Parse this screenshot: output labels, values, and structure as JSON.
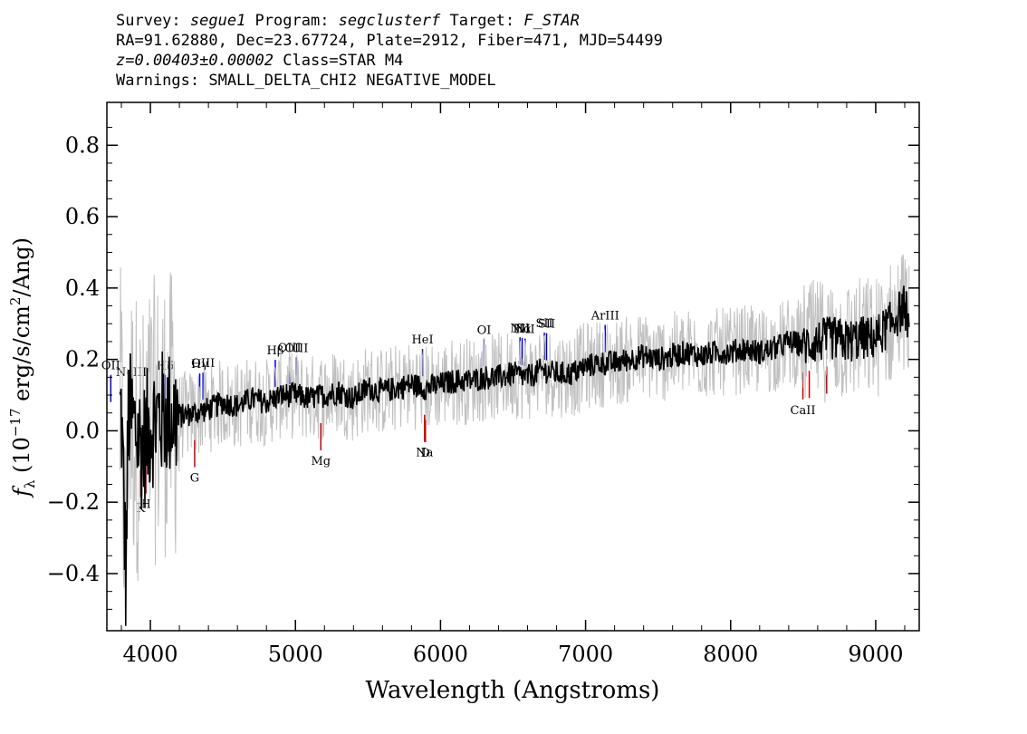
{
  "header": {
    "line1": {
      "survey_label": "Survey: ",
      "survey": "segue1",
      "program_label": " Program: ",
      "program": "segclusterf",
      "target_label": " Target: ",
      "target": "F_STAR"
    },
    "line2": "RA=91.62880, Dec=23.67724, Plate=2912, Fiber=471, MJD=54499",
    "line3": {
      "z": "z=0.00403±0.00002",
      "class": " Class=STAR M4"
    },
    "line4": "Warnings: SMALL_DELTA_CHI2 NEGATIVE_MODEL"
  },
  "chart_data": {
    "type": "line",
    "xlabel": "Wavelength (Angstroms)",
    "ylabel": "f_λ (10^-17 erg/s/cm²/Ang)",
    "xlim": [
      3700,
      9300
    ],
    "ylim": [
      -0.56,
      0.92
    ],
    "xticks": [
      4000,
      5000,
      6000,
      7000,
      8000,
      9000
    ],
    "yticks": [
      -0.4,
      -0.2,
      0.0,
      0.2,
      0.4,
      0.6,
      0.8
    ],
    "ytick_labels": [
      "−0.4",
      "−0.2",
      "0.0",
      "0.2",
      "0.4",
      "0.6",
      "0.8"
    ],
    "series": [
      {
        "role": "flux",
        "color": "#000000",
        "x": [
          3800,
          3830,
          3850,
          3900,
          3950,
          4000,
          4100,
          4200,
          4300,
          4400,
          4500,
          4600,
          4700,
          4800,
          4900,
          5000,
          5100,
          5200,
          5300,
          5400,
          5500,
          5600,
          5700,
          5800,
          5900,
          6000,
          6100,
          6200,
          6300,
          6400,
          6500,
          6600,
          6700,
          6800,
          6900,
          7000,
          7100,
          7200,
          7300,
          7400,
          7500,
          7600,
          7700,
          7800,
          7900,
          8000,
          8100,
          8200,
          8300,
          8400,
          8500,
          8600,
          8700,
          8800,
          8900,
          9000,
          9100,
          9200,
          9230
        ],
        "y": [
          0.05,
          -0.4,
          0.05,
          0.0,
          -0.05,
          0.02,
          0.05,
          0.04,
          0.05,
          0.06,
          0.08,
          0.07,
          0.09,
          0.08,
          0.1,
          0.1,
          0.09,
          0.1,
          0.11,
          0.09,
          0.12,
          0.11,
          0.12,
          0.13,
          0.12,
          0.13,
          0.14,
          0.14,
          0.15,
          0.15,
          0.16,
          0.15,
          0.17,
          0.16,
          0.16,
          0.18,
          0.19,
          0.19,
          0.2,
          0.21,
          0.2,
          0.21,
          0.22,
          0.21,
          0.22,
          0.22,
          0.23,
          0.22,
          0.23,
          0.25,
          0.24,
          0.25,
          0.26,
          0.25,
          0.26,
          0.26,
          0.3,
          0.35,
          0.3
        ]
      },
      {
        "role": "error",
        "color": "#c0c0c0"
      }
    ],
    "emission_lines": [
      {
        "label": "OII",
        "x": 3727
      },
      {
        "label": "NeIII",
        "x": 3869
      },
      {
        "label": "Hδ",
        "x": 4102
      },
      {
        "label": "Hγ",
        "x": 4340
      },
      {
        "label": "OIII",
        "x": 4363
      },
      {
        "label": "Hβ",
        "x": 4861
      },
      {
        "label": "OIII",
        "x": 4959
      },
      {
        "label": "OIII",
        "x": 5007
      },
      {
        "label": "HeI",
        "x": 5876
      },
      {
        "label": "OI",
        "x": 6300
      },
      {
        "label": "NII",
        "x": 6548
      },
      {
        "label": "Hα",
        "x": 6563
      },
      {
        "label": "NII",
        "x": 6583
      },
      {
        "label": "SII",
        "x": 6716
      },
      {
        "label": "SII",
        "x": 6731
      },
      {
        "label": "ArIII",
        "x": 7135
      }
    ],
    "absorption_lines": [
      {
        "label": "K",
        "x": 3934
      },
      {
        "label": "H",
        "x": 3969
      },
      {
        "label": "G",
        "x": 4305
      },
      {
        "label": "Mg",
        "x": 5175
      },
      {
        "label": "Na",
        "x": 5890
      },
      {
        "label": "D",
        "x": 5896
      },
      {
        "label": "CaII",
        "x": 8498
      },
      {
        "label": "",
        "x": 8542
      },
      {
        "label": "",
        "x": 8662
      }
    ]
  }
}
